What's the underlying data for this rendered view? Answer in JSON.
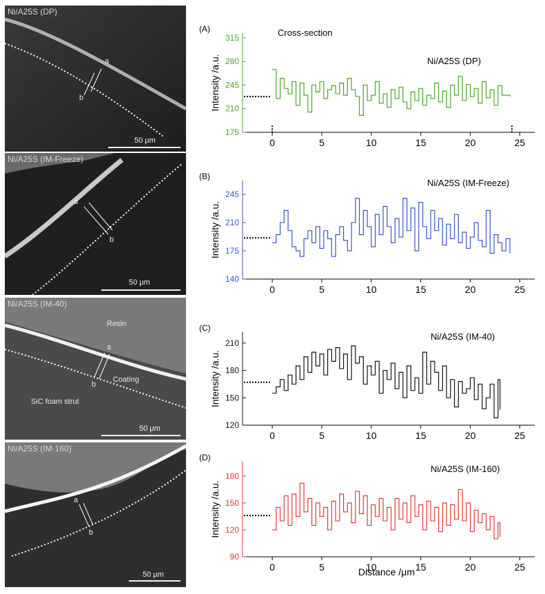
{
  "images": [
    {
      "title": "Ni/A25S (DP)",
      "scale": "50 μm",
      "point_a": "a",
      "point_b": "b",
      "labels": []
    },
    {
      "title": "Ni/A25S (IM-Freeze)",
      "scale": "50 μm",
      "point_a": "a",
      "point_b": "b",
      "labels": []
    },
    {
      "title": "Ni/A25S (IM-40)",
      "scale": "50 μm",
      "point_a": "a",
      "point_b": "b",
      "labels": [
        "Resin",
        "Coating",
        "SiC foam strut"
      ]
    },
    {
      "title": "Ni/A25S (IM-160)",
      "scale": "50 μm",
      "point_a": "a",
      "point_b": "b",
      "labels": []
    }
  ],
  "xlabel": "Distance /μm",
  "chart_data": [
    {
      "type": "line",
      "panel": "(A)",
      "title": "Ni/A25S (DP)",
      "annotation": "Cross-section",
      "ylabel": "Intensity /a.u.",
      "color": "#4aa52a",
      "xlim": [
        -3,
        26.5
      ],
      "ylim": [
        175,
        322
      ],
      "xticks": [
        0,
        5,
        10,
        15,
        20,
        25
      ],
      "yticks": [
        175,
        210,
        245,
        280,
        315
      ],
      "reference_level": 228,
      "reference_markers": [
        0,
        24.2
      ],
      "x": [
        0,
        0.4,
        0.8,
        1.2,
        1.6,
        2.0,
        2.4,
        2.8,
        3.2,
        3.6,
        4.0,
        4.4,
        4.8,
        5.2,
        5.6,
        6.0,
        6.4,
        6.8,
        7.2,
        7.6,
        8.0,
        8.4,
        8.8,
        9.2,
        9.6,
        10.0,
        10.4,
        10.8,
        11.2,
        11.6,
        12.0,
        12.4,
        12.8,
        13.2,
        13.6,
        14.0,
        14.4,
        14.8,
        15.2,
        15.6,
        16.0,
        16.4,
        16.8,
        17.2,
        17.6,
        18.0,
        18.4,
        18.8,
        19.2,
        19.6,
        20.0,
        20.4,
        20.8,
        21.2,
        21.6,
        22.0,
        22.4,
        22.8,
        23.2,
        23.6,
        24.0
      ],
      "y": [
        268,
        225,
        255,
        240,
        232,
        250,
        215,
        248,
        230,
        205,
        245,
        235,
        250,
        225,
        238,
        244,
        232,
        248,
        230,
        255,
        238,
        228,
        200,
        245,
        222,
        230,
        250,
        218,
        232,
        212,
        238,
        225,
        242,
        220,
        210,
        235,
        222,
        240,
        215,
        230,
        225,
        248,
        220,
        236,
        212,
        245,
        230,
        258,
        222,
        246,
        228,
        240,
        218,
        250,
        226,
        238,
        215,
        244,
        230,
        230,
        228
      ]
    },
    {
      "type": "line",
      "panel": "(B)",
      "title": "Ni/A25S (IM-Freeze)",
      "ylabel": "Intensity /a.u.",
      "color": "#3a55c8",
      "xlim": [
        -3,
        26.5
      ],
      "ylim": [
        140,
        262
      ],
      "xticks": [
        0,
        5,
        10,
        15,
        20,
        25
      ],
      "yticks": [
        140,
        175,
        210,
        245
      ],
      "reference_level": 191,
      "x": [
        0,
        0.4,
        0.8,
        1.2,
        1.6,
        2.0,
        2.4,
        2.8,
        3.2,
        3.6,
        4.0,
        4.4,
        4.8,
        5.2,
        5.6,
        6.0,
        6.4,
        6.8,
        7.2,
        7.6,
        8.0,
        8.4,
        8.8,
        9.2,
        9.6,
        10.0,
        10.4,
        10.8,
        11.2,
        11.6,
        12.0,
        12.4,
        12.8,
        13.2,
        13.6,
        14.0,
        14.4,
        14.8,
        15.2,
        15.6,
        16.0,
        16.4,
        16.8,
        17.2,
        17.6,
        18.0,
        18.4,
        18.8,
        19.2,
        19.6,
        20.0,
        20.4,
        20.8,
        21.2,
        21.6,
        22.0,
        22.4,
        22.8,
        23.2,
        23.6,
        24.0
      ],
      "y": [
        185,
        195,
        210,
        225,
        200,
        180,
        175,
        168,
        190,
        200,
        185,
        205,
        178,
        200,
        190,
        168,
        195,
        205,
        188,
        175,
        210,
        240,
        195,
        225,
        205,
        180,
        220,
        195,
        230,
        205,
        185,
        215,
        192,
        240,
        200,
        228,
        175,
        235,
        205,
        190,
        225,
        200,
        215,
        182,
        208,
        190,
        220,
        185,
        198,
        178,
        192,
        210,
        188,
        180,
        225,
        172,
        195,
        185,
        175,
        190,
        172
      ]
    },
    {
      "type": "line",
      "panel": "(C)",
      "title": "Ni/A25S (IM-40)",
      "ylabel": "Intensity /a.u.",
      "color": "#111111",
      "xlim": [
        -3,
        26.5
      ],
      "ylim": [
        120,
        222
      ],
      "xticks": [
        0,
        5,
        10,
        15,
        20,
        25
      ],
      "yticks": [
        120,
        150,
        180,
        210
      ],
      "reference_level": 167,
      "x": [
        0,
        0.4,
        0.8,
        1.2,
        1.6,
        2.0,
        2.4,
        2.8,
        3.2,
        3.6,
        4.0,
        4.4,
        4.8,
        5.2,
        5.6,
        6.0,
        6.4,
        6.8,
        7.2,
        7.6,
        8.0,
        8.4,
        8.8,
        9.2,
        9.6,
        10.0,
        10.4,
        10.8,
        11.2,
        11.6,
        12.0,
        12.4,
        12.8,
        13.2,
        13.6,
        14.0,
        14.4,
        14.8,
        15.2,
        15.6,
        16.0,
        16.4,
        16.8,
        17.2,
        17.6,
        18.0,
        18.4,
        18.8,
        19.2,
        19.6,
        20.0,
        20.4,
        20.8,
        21.2,
        21.6,
        22.0,
        22.4,
        22.8,
        23.0
      ],
      "y": [
        155,
        162,
        170,
        158,
        175,
        165,
        185,
        170,
        195,
        178,
        200,
        185,
        198,
        175,
        203,
        190,
        205,
        182,
        198,
        170,
        207,
        188,
        195,
        165,
        185,
        175,
        190,
        155,
        180,
        170,
        188,
        160,
        178,
        150,
        185,
        158,
        172,
        155,
        200,
        165,
        190,
        178,
        158,
        185,
        150,
        170,
        140,
        168,
        155,
        160,
        172,
        148,
        165,
        138,
        150,
        165,
        128,
        170,
        137
      ]
    },
    {
      "type": "line",
      "panel": "(D)",
      "title": "Ni/A25S (IM-160)",
      "ylabel": "Intensity /a.u.",
      "color": "#e03a3a",
      "xlim": [
        -3,
        26.5
      ],
      "ylim": [
        90,
        196
      ],
      "xticks": [
        0,
        5,
        10,
        15,
        20,
        25
      ],
      "yticks": [
        90,
        120,
        150,
        180
      ],
      "reference_level": 136,
      "x": [
        0,
        0.4,
        0.8,
        1.2,
        1.6,
        2.0,
        2.4,
        2.8,
        3.2,
        3.6,
        4.0,
        4.4,
        4.8,
        5.2,
        5.6,
        6.0,
        6.4,
        6.8,
        7.2,
        7.6,
        8.0,
        8.4,
        8.8,
        9.2,
        9.6,
        10.0,
        10.4,
        10.8,
        11.2,
        11.6,
        12.0,
        12.4,
        12.8,
        13.2,
        13.6,
        14.0,
        14.4,
        14.8,
        15.2,
        15.6,
        16.0,
        16.4,
        16.8,
        17.2,
        17.6,
        18.0,
        18.4,
        18.8,
        19.2,
        19.6,
        20.0,
        20.4,
        20.8,
        21.2,
        21.6,
        22.0,
        22.4,
        22.8,
        23.0
      ],
      "y": [
        120,
        145,
        130,
        158,
        125,
        160,
        135,
        172,
        140,
        155,
        125,
        150,
        135,
        145,
        120,
        152,
        130,
        160,
        140,
        150,
        128,
        163,
        138,
        158,
        125,
        148,
        135,
        155,
        130,
        145,
        120,
        155,
        132,
        150,
        128,
        158,
        135,
        148,
        120,
        152,
        130,
        145,
        118,
        150,
        125,
        148,
        132,
        165,
        130,
        150,
        118,
        142,
        128,
        138,
        120,
        135,
        110,
        128,
        112
      ]
    }
  ]
}
